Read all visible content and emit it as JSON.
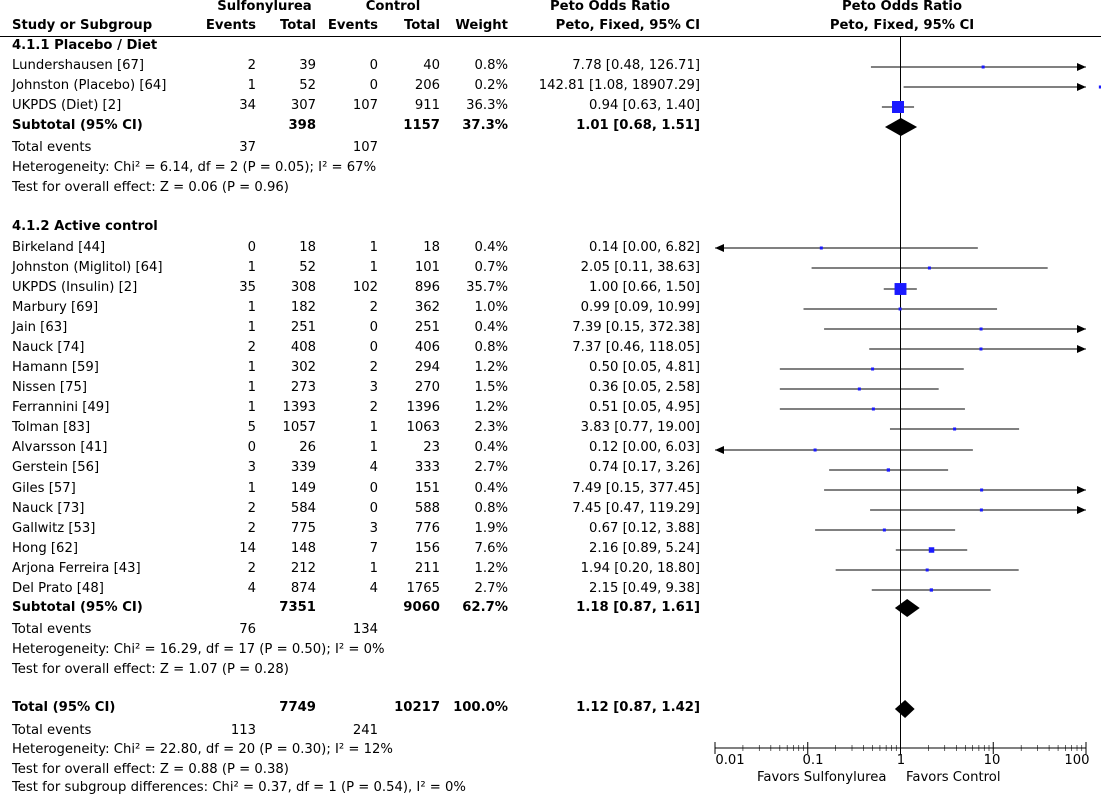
{
  "header": {
    "group1": "Sulfonylurea",
    "group2": "Control",
    "or_title": "Peto Odds Ratio",
    "plot_title": "Peto Odds Ratio",
    "col_study": "Study or Subgroup",
    "col_events1": "Events",
    "col_total1": "Total",
    "col_events2": "Events",
    "col_total2": "Total",
    "col_weight": "Weight",
    "col_method": "Peto, Fixed, 95% CI",
    "plot_method": "Peto, Fixed, 95% CI"
  },
  "rows": [
    {
      "kind": "group",
      "study": "4.1.1 Placebo / Diet"
    },
    {
      "kind": "study",
      "study": "Lundershausen [67]",
      "e1": "2",
      "n1": "39",
      "e2": "0",
      "n2": "40",
      "w": "0.8%",
      "ci": "7.78 [0.48, 126.71]"
    },
    {
      "kind": "study",
      "study": "Johnston (Placebo) [64]",
      "e1": "1",
      "n1": "52",
      "e2": "0",
      "n2": "206",
      "w": "0.2%",
      "ci": "142.81 [1.08, 18907.29]"
    },
    {
      "kind": "study",
      "study": "UKPDS (Diet) [2]",
      "e1": "34",
      "n1": "307",
      "e2": "107",
      "n2": "911",
      "w": "36.3%",
      "ci": "0.94 [0.63, 1.40]"
    },
    {
      "kind": "subtotal",
      "study": "Subtotal (95% CI)",
      "e1": "",
      "n1": "398",
      "e2": "",
      "n2": "1157",
      "w": "37.3%",
      "ci": "1.01 [0.68, 1.51]"
    },
    {
      "kind": "events",
      "study": "Total events",
      "e1": "37",
      "e2": "107"
    },
    {
      "kind": "note",
      "study": "Heterogeneity: Chi² = 6.14, df = 2 (P = 0.05); I² = 67%"
    },
    {
      "kind": "note",
      "study": "Test for overall effect: Z = 0.06 (P = 0.96)"
    },
    {
      "kind": "blank"
    },
    {
      "kind": "group",
      "study": "4.1.2 Active control"
    },
    {
      "kind": "study",
      "study": "Birkeland [44]",
      "e1": "0",
      "n1": "18",
      "e2": "1",
      "n2": "18",
      "w": "0.4%",
      "ci": "0.14 [0.00, 6.82]"
    },
    {
      "kind": "study",
      "study": "Johnston (Miglitol) [64]",
      "e1": "1",
      "n1": "52",
      "e2": "1",
      "n2": "101",
      "w": "0.7%",
      "ci": "2.05 [0.11, 38.63]"
    },
    {
      "kind": "study",
      "study": "UKPDS (Insulin) [2]",
      "e1": "35",
      "n1": "308",
      "e2": "102",
      "n2": "896",
      "w": "35.7%",
      "ci": "1.00 [0.66, 1.50]"
    },
    {
      "kind": "study",
      "study": "Marbury [69]",
      "e1": "1",
      "n1": "182",
      "e2": "2",
      "n2": "362",
      "w": "1.0%",
      "ci": "0.99 [0.09, 10.99]"
    },
    {
      "kind": "study",
      "study": "Jain [63]",
      "e1": "1",
      "n1": "251",
      "e2": "0",
      "n2": "251",
      "w": "0.4%",
      "ci": "7.39 [0.15, 372.38]"
    },
    {
      "kind": "study",
      "study": "Nauck [74]",
      "e1": "2",
      "n1": "408",
      "e2": "0",
      "n2": "406",
      "w": "0.8%",
      "ci": "7.37 [0.46, 118.05]"
    },
    {
      "kind": "study",
      "study": "Hamann [59]",
      "e1": "1",
      "n1": "302",
      "e2": "2",
      "n2": "294",
      "w": "1.2%",
      "ci": "0.50 [0.05, 4.81]"
    },
    {
      "kind": "study",
      "study": "Nissen [75]",
      "e1": "1",
      "n1": "273",
      "e2": "3",
      "n2": "270",
      "w": "1.5%",
      "ci": "0.36 [0.05, 2.58]"
    },
    {
      "kind": "study",
      "study": "Ferrannini [49]",
      "e1": "1",
      "n1": "1393",
      "e2": "2",
      "n2": "1396",
      "w": "1.2%",
      "ci": "0.51 [0.05, 4.95]"
    },
    {
      "kind": "study",
      "study": "Tolman [83]",
      "e1": "5",
      "n1": "1057",
      "e2": "1",
      "n2": "1063",
      "w": "2.3%",
      "ci": "3.83 [0.77, 19.00]"
    },
    {
      "kind": "study",
      "study": "Alvarsson [41]",
      "e1": "0",
      "n1": "26",
      "e2": "1",
      "n2": "23",
      "w": "0.4%",
      "ci": "0.12 [0.00, 6.03]"
    },
    {
      "kind": "study",
      "study": "Gerstein [56]",
      "e1": "3",
      "n1": "339",
      "e2": "4",
      "n2": "333",
      "w": "2.7%",
      "ci": "0.74 [0.17, 3.26]"
    },
    {
      "kind": "study",
      "study": "Giles [57]",
      "e1": "1",
      "n1": "149",
      "e2": "0",
      "n2": "151",
      "w": "0.4%",
      "ci": "7.49 [0.15, 377.45]"
    },
    {
      "kind": "study",
      "study": "Nauck [73]",
      "e1": "2",
      "n1": "584",
      "e2": "0",
      "n2": "588",
      "w": "0.8%",
      "ci": "7.45 [0.47, 119.29]"
    },
    {
      "kind": "study",
      "study": "Gallwitz [53]",
      "e1": "2",
      "n1": "775",
      "e2": "3",
      "n2": "776",
      "w": "1.9%",
      "ci": "0.67 [0.12, 3.88]"
    },
    {
      "kind": "study",
      "study": "Hong [62]",
      "e1": "14",
      "n1": "148",
      "e2": "7",
      "n2": "156",
      "w": "7.6%",
      "ci": "2.16 [0.89, 5.24]"
    },
    {
      "kind": "study",
      "study": "Arjona Ferreira [43]",
      "e1": "2",
      "n1": "212",
      "e2": "1",
      "n2": "211",
      "w": "1.2%",
      "ci": "1.94 [0.20, 18.80]"
    },
    {
      "kind": "study",
      "study": "Del Prato [48]",
      "e1": "4",
      "n1": "874",
      "e2": "4",
      "n2": "1765",
      "w": "2.7%",
      "ci": "2.15 [0.49, 9.38]"
    },
    {
      "kind": "subtotal",
      "study": "Subtotal (95% CI)",
      "e1": "",
      "n1": "7351",
      "e2": "",
      "n2": "9060",
      "w": "62.7%",
      "ci": "1.18 [0.87, 1.61]"
    },
    {
      "kind": "events",
      "study": "Total events",
      "e1": "76",
      "e2": "134"
    },
    {
      "kind": "note",
      "study": "Heterogeneity: Chi² = 16.29, df = 17 (P = 0.50); I² = 0%"
    },
    {
      "kind": "note",
      "study": "Test for overall effect: Z = 1.07 (P = 0.28)"
    },
    {
      "kind": "blank"
    },
    {
      "kind": "total",
      "study": "Total (95% CI)",
      "e1": "",
      "n1": "7749",
      "e2": "",
      "n2": "10217",
      "w": "100.0%",
      "ci": "1.12 [0.87, 1.42]"
    },
    {
      "kind": "events",
      "study": "Total events",
      "e1": "113",
      "e2": "241"
    },
    {
      "kind": "note",
      "study": "Heterogeneity: Chi² = 22.80, df = 20 (P = 0.30); I² = 12%"
    },
    {
      "kind": "note",
      "study": "Test for overall effect: Z = 0.88 (P = 0.38)"
    },
    {
      "kind": "note",
      "study": "Test for subgroup differences: Chi² = 0.37, df = 1 (P = 0.54), I² = 0%"
    }
  ],
  "axis": {
    "ticks": [
      "0.01",
      "0.1",
      "1",
      "10",
      "100"
    ],
    "favors_left": "Favors Sulfonylurea",
    "favors_right": "Favors Control"
  },
  "colors": {
    "square": "#1a1aff",
    "line": "#000000",
    "diamond": "#000000"
  },
  "chart_data": {
    "type": "forest",
    "scale": "log",
    "xlim": [
      0.01,
      100
    ],
    "ticks": [
      0.01,
      0.1,
      1,
      10,
      100
    ],
    "reference_line": 1,
    "points": [
      {
        "study": "Lundershausen [67]",
        "or": 7.78,
        "lo": 0.48,
        "hi": 126.71,
        "weight": 0.8
      },
      {
        "study": "Johnston (Placebo) [64]",
        "or": 142.81,
        "lo": 1.08,
        "hi": 18907.29,
        "weight": 0.2
      },
      {
        "study": "UKPDS (Diet) [2]",
        "or": 0.94,
        "lo": 0.63,
        "hi": 1.4,
        "weight": 36.3
      },
      {
        "study": "Subtotal (95% CI)",
        "or": 1.01,
        "lo": 0.68,
        "hi": 1.51,
        "diamond": true
      },
      {
        "study": "Birkeland [44]",
        "or": 0.14,
        "lo": 0.0,
        "hi": 6.82,
        "weight": 0.4
      },
      {
        "study": "Johnston (Miglitol) [64]",
        "or": 2.05,
        "lo": 0.11,
        "hi": 38.63,
        "weight": 0.7
      },
      {
        "study": "UKPDS (Insulin) [2]",
        "or": 1.0,
        "lo": 0.66,
        "hi": 1.5,
        "weight": 35.7
      },
      {
        "study": "Marbury [69]",
        "or": 0.99,
        "lo": 0.09,
        "hi": 10.99,
        "weight": 1.0
      },
      {
        "study": "Jain [63]",
        "or": 7.39,
        "lo": 0.15,
        "hi": 372.38,
        "weight": 0.4
      },
      {
        "study": "Nauck [74]",
        "or": 7.37,
        "lo": 0.46,
        "hi": 118.05,
        "weight": 0.8
      },
      {
        "study": "Hamann [59]",
        "or": 0.5,
        "lo": 0.05,
        "hi": 4.81,
        "weight": 1.2
      },
      {
        "study": "Nissen [75]",
        "or": 0.36,
        "lo": 0.05,
        "hi": 2.58,
        "weight": 1.5
      },
      {
        "study": "Ferrannini [49]",
        "or": 0.51,
        "lo": 0.05,
        "hi": 4.95,
        "weight": 1.2
      },
      {
        "study": "Tolman [83]",
        "or": 3.83,
        "lo": 0.77,
        "hi": 19.0,
        "weight": 2.3
      },
      {
        "study": "Alvarsson [41]",
        "or": 0.12,
        "lo": 0.0,
        "hi": 6.03,
        "weight": 0.4
      },
      {
        "study": "Gerstein [56]",
        "or": 0.74,
        "lo": 0.17,
        "hi": 3.26,
        "weight": 2.7
      },
      {
        "study": "Giles [57]",
        "or": 7.49,
        "lo": 0.15,
        "hi": 377.45,
        "weight": 0.4
      },
      {
        "study": "Nauck [73]",
        "or": 7.45,
        "lo": 0.47,
        "hi": 119.29,
        "weight": 0.8
      },
      {
        "study": "Gallwitz [53]",
        "or": 0.67,
        "lo": 0.12,
        "hi": 3.88,
        "weight": 1.9
      },
      {
        "study": "Hong [62]",
        "or": 2.16,
        "lo": 0.89,
        "hi": 5.24,
        "weight": 7.6
      },
      {
        "study": "Arjona Ferreira [43]",
        "or": 1.94,
        "lo": 0.2,
        "hi": 18.8,
        "weight": 1.2
      },
      {
        "study": "Del Prato [48]",
        "or": 2.15,
        "lo": 0.49,
        "hi": 9.38,
        "weight": 2.7
      },
      {
        "study": "Subtotal (95% CI)",
        "or": 1.18,
        "lo": 0.87,
        "hi": 1.61,
        "diamond": true
      },
      {
        "study": "Total (95% CI)",
        "or": 1.12,
        "lo": 0.87,
        "hi": 1.42,
        "diamond": true
      }
    ]
  }
}
